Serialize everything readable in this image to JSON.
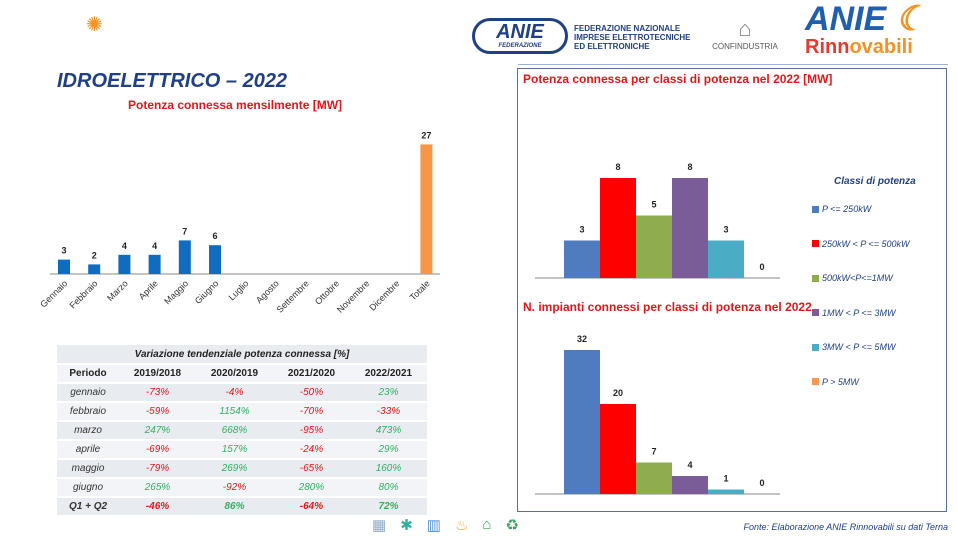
{
  "header": {
    "title": "IDROELETTRICO – 2022",
    "org_logo": "ANIE",
    "org_logo_sub": "FEDERAZIONE",
    "org_lines": [
      "FEDERAZIONE NAZIONALE",
      "IMPRESE ELETTROTECNICHE",
      "ED ELETTRONICHE"
    ],
    "confindustria": "CONFINDUSTRIA",
    "brand_a": "ANIE",
    "brand_b1": "Rinn",
    "brand_b2": "ovabili"
  },
  "chart_data": [
    {
      "type": "bar",
      "title": "Potenza connessa mensilmente [MW]",
      "categories": [
        "Gennaio",
        "Febbraio",
        "Marzo",
        "Aprile",
        "Maggio",
        "Giugno",
        "Luglio",
        "Agosto",
        "Settembre",
        "Ottobre",
        "Novembre",
        "Dicembre",
        "Totale"
      ],
      "values": [
        3,
        2,
        4,
        4,
        7,
        6,
        null,
        null,
        null,
        null,
        null,
        null,
        27
      ],
      "labels": [
        "3",
        "2",
        "4",
        "4",
        "7",
        "6",
        "",
        "",
        "",
        "",
        "",
        "",
        "27"
      ],
      "colors": {
        "month": "#0f6cbf",
        "total": "#f79646"
      }
    },
    {
      "type": "bar",
      "title": "Potenza connessa per classi di potenza nel 2022 [MW]",
      "categories": [
        "P <= 250kW",
        "250kW < P <= 500kW",
        "500kW<P<=1MW",
        "1MW < P <= 3MW",
        "3MW < P <= 5MW",
        "P > 5MW"
      ],
      "values": [
        3,
        8,
        5,
        8,
        3,
        0
      ]
    },
    {
      "type": "bar",
      "title": "N. impianti connessi per classi di potenza nel 2022",
      "categories": [
        "P <= 250kW",
        "250kW < P <= 500kW",
        "500kW<P<=1MW",
        "1MW < P <= 3MW",
        "3MW < P <= 5MW",
        "P > 5MW"
      ],
      "values": [
        32,
        20,
        7,
        4,
        1,
        0
      ]
    }
  ],
  "legend": {
    "title": "Classi di potenza",
    "items": [
      {
        "label": "P <= 250kW",
        "color": "#4f7bbf"
      },
      {
        "label": "250kW < P <= 500kW",
        "color": "#ff0000"
      },
      {
        "label": "500kW<P<=1MW",
        "color": "#8fad4f"
      },
      {
        "label": "1MW < P <= 3MW",
        "color": "#7a5c99"
      },
      {
        "label": "3MW < P <= 5MW",
        "color": "#4bacc6"
      },
      {
        "label": "P > 5MW",
        "color": "#f39a4f"
      }
    ]
  },
  "table": {
    "caption": "Variazione tendenziale potenza connessa [%]",
    "headers": [
      "Periodo",
      "2019/2018",
      "2020/2019",
      "2021/2020",
      "2022/2021"
    ],
    "rows": [
      [
        "gennaio",
        "-73%",
        "-4%",
        "-50%",
        "23%"
      ],
      [
        "febbraio",
        "-59%",
        "1154%",
        "-70%",
        "-33%"
      ],
      [
        "marzo",
        "247%",
        "668%",
        "-95%",
        "473%"
      ],
      [
        "aprile",
        "-69%",
        "157%",
        "-24%",
        "29%"
      ],
      [
        "maggio",
        "-79%",
        "269%",
        "-65%",
        "160%"
      ],
      [
        "giugno",
        "265%",
        "-92%",
        "280%",
        "80%"
      ],
      [
        "Q1 + Q2",
        "-46%",
        "86%",
        "-64%",
        "72%"
      ]
    ]
  },
  "footer": {
    "source": "Fonte: Elaborazione ANIE Rinnovabili su dati Terna",
    "icons": [
      "solar-panel-icon",
      "wind-turbine-icon",
      "hydro-icon",
      "geothermal-icon",
      "home-energy-icon",
      "biomass-icon"
    ]
  }
}
